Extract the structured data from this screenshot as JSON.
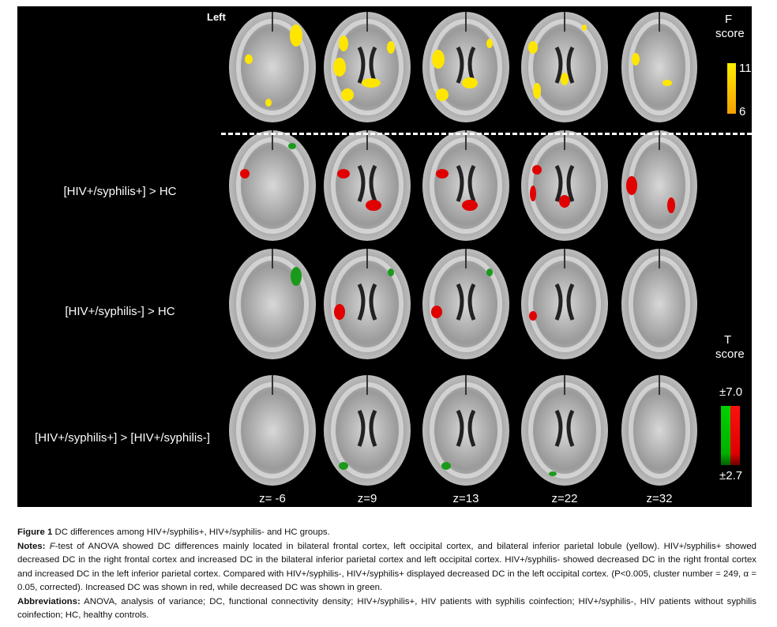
{
  "figure": {
    "side_label": "Left",
    "f_legend": {
      "title_line1": "F",
      "title_line2": "score",
      "max": "11",
      "min": "6",
      "colors": [
        "#ffee00",
        "#f5a000"
      ]
    },
    "t_legend": {
      "title_line1": "T",
      "title_line2": "score",
      "max": "±7.0",
      "min": "±2.7",
      "colors": {
        "increase": "#e00000",
        "decrease": "#00b000"
      }
    },
    "rows": [
      {
        "label": ""
      },
      {
        "label": "[HIV+/syphilis+] > HC"
      },
      {
        "label": "[HIV+/syphilis-] > HC"
      },
      {
        "label": "[HIV+/syphilis+] > [HIV+/syphilis-]"
      }
    ],
    "slices": [
      "z= -6",
      "z=9",
      "z=13",
      "z=22",
      "z=32"
    ]
  },
  "caption": {
    "title_bold": "Figure 1",
    "title": " DC differences among HIV+/syphilis+, HIV+/syphilis- and HC groups.",
    "notes_label": "Notes:",
    "notes_f": " F",
    "notes": "-test of ANOVA showed DC differences mainly located in bilateral frontal cortex, left occipital cortex, and bilateral inferior parietal lobule (yellow). HIV+/syphilis+ showed decreased DC in the right frontal cortex and increased DC in the bilateral inferior parietal cortex and left occipital cortex. HIV+/syphilis- showed decreased DC in the right frontal cortex and increased DC in the left inferior parietal cortex. Compared with HIV+/syphilis-, HIV+/syphilis+ displayed decreased DC in the left occipital cortex. (P<0.005, cluster number = 249, α = 0.05, corrected). Increased DC was shown in red, while decreased DC was shown in green.",
    "abbr_label": "Abbreviations:",
    "abbr": " ANOVA, analysis of variance; DC, functional connectivity density; HIV+/syphilis+, HIV patients with syphilis coinfection; HIV+/syphilis-, HIV patients without syphilis coinfection; HC, healthy controls."
  }
}
